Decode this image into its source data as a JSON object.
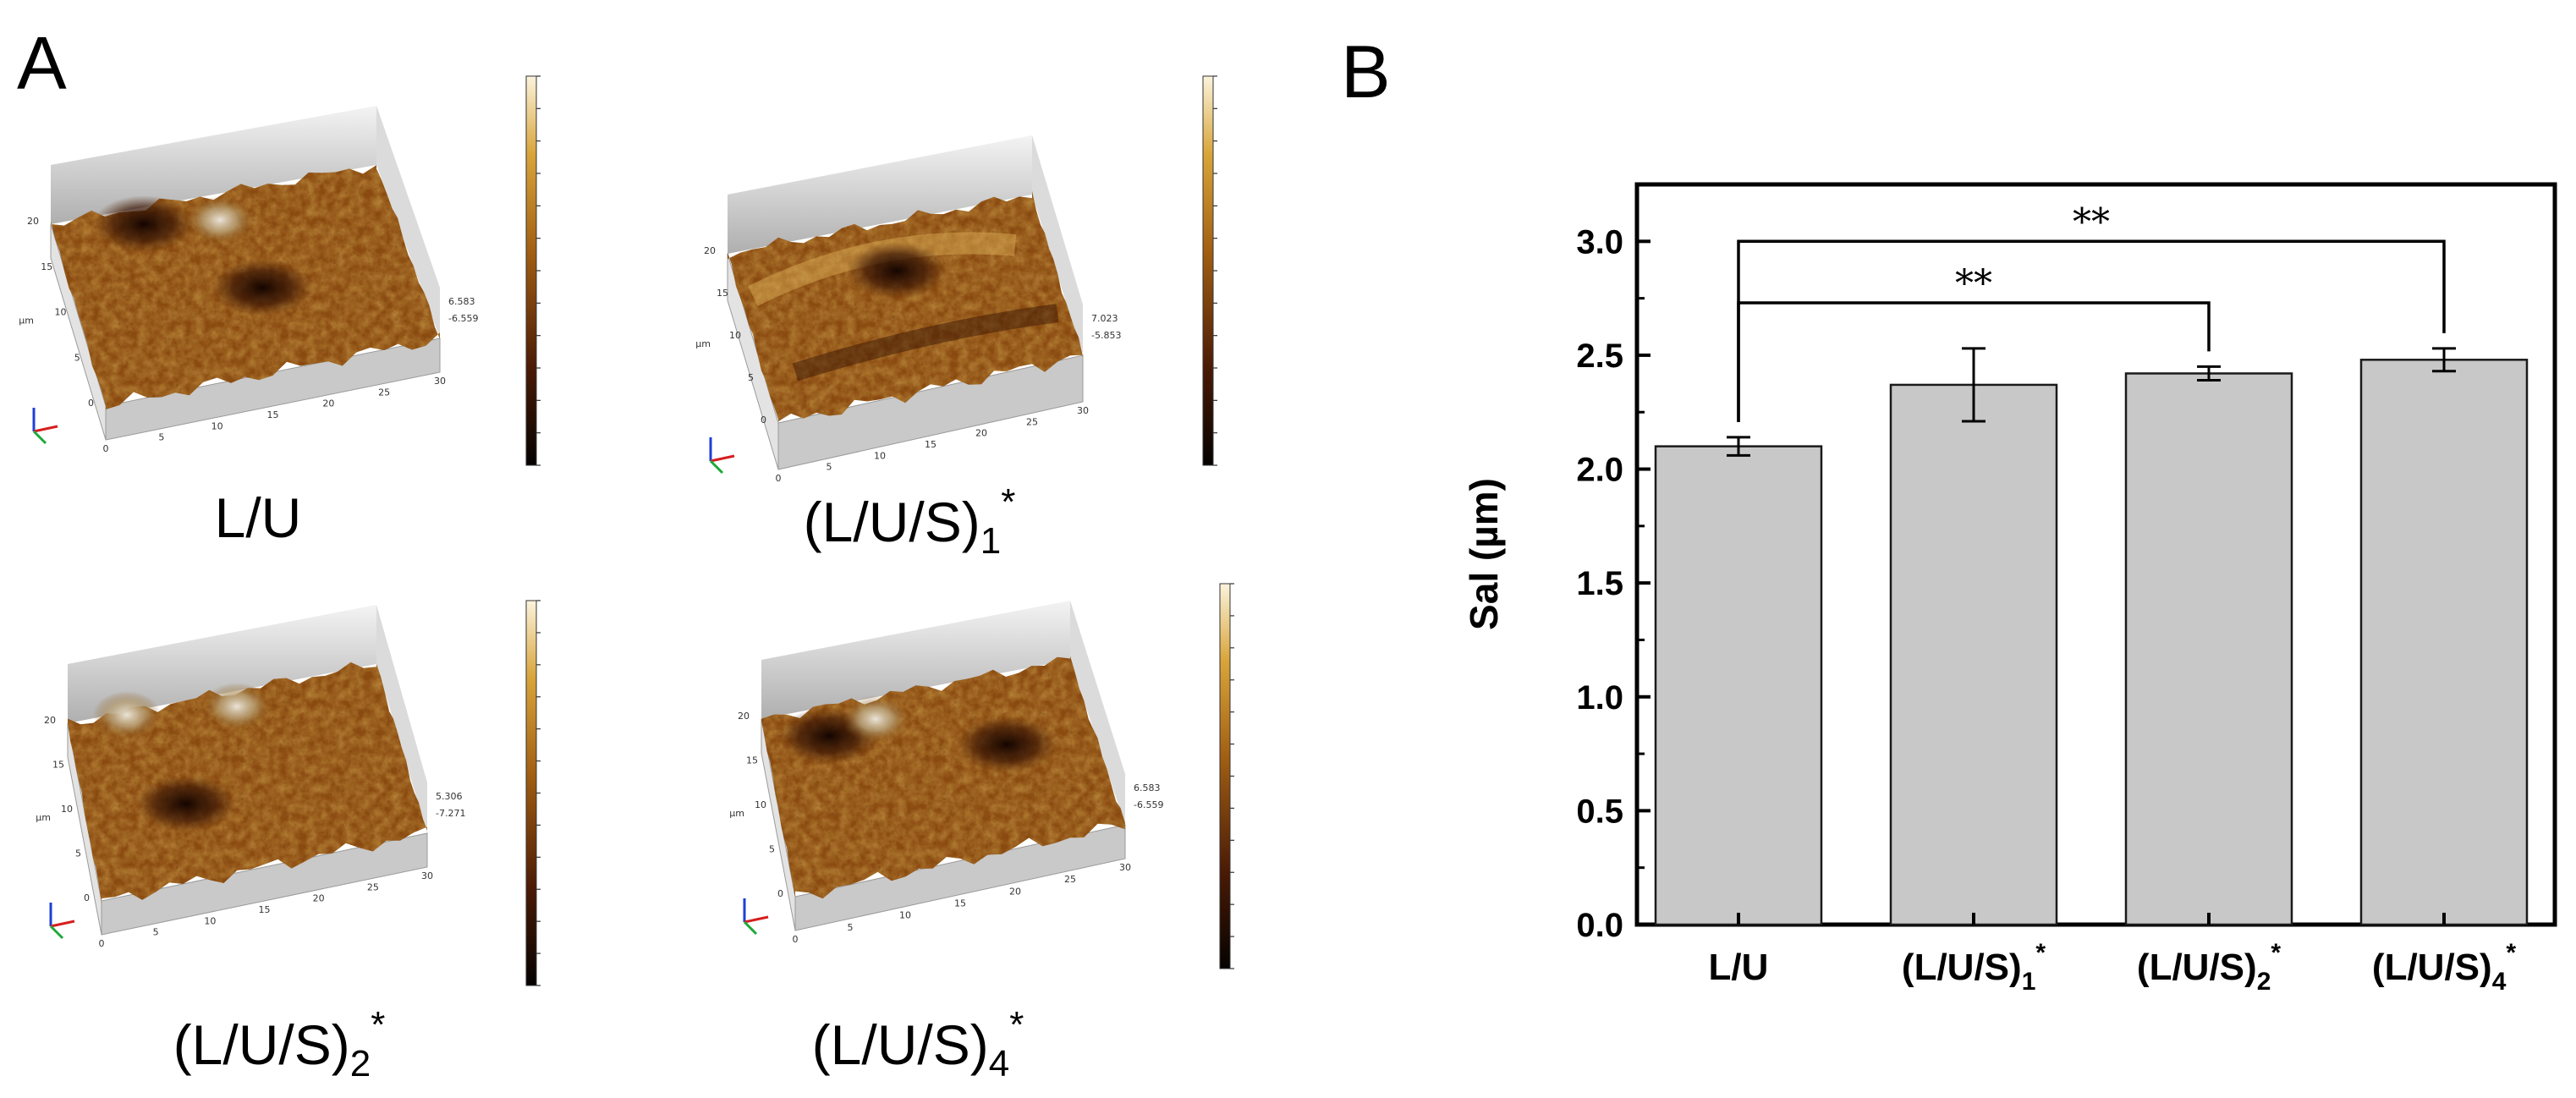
{
  "panels": {
    "a_letter": "A",
    "b_letter": "B"
  },
  "afm_images": [
    {
      "label_main": "L/U",
      "label_sub": "",
      "label_sup": "",
      "peak_value": "6.583",
      "valley_value": "-6.559",
      "axis_ticks": [
        "0",
        "5",
        "10",
        "15",
        "20",
        "25",
        "30"
      ],
      "axis_unit": "µm"
    },
    {
      "label_main": "(L/U/S)",
      "label_sub": "1",
      "label_sup": "*",
      "peak_value": "7.023",
      "valley_value": "-5.853",
      "axis_ticks": [
        "0",
        "5",
        "10",
        "15",
        "20",
        "25",
        "30"
      ],
      "axis_unit": "µm"
    },
    {
      "label_main": "(L/U/S)",
      "label_sub": "2",
      "label_sup": "*",
      "peak_value": "5.306",
      "valley_value": "-7.271",
      "axis_ticks": [
        "0",
        "5",
        "10",
        "15",
        "20",
        "25",
        "30"
      ],
      "axis_unit": "µm"
    },
    {
      "label_main": "(L/U/S)",
      "label_sub": "4",
      "label_sup": "*",
      "peak_value": "6.583",
      "valley_value": "-6.559",
      "axis_ticks": [
        "0",
        "5",
        "10",
        "15",
        "20",
        "25",
        "30"
      ],
      "axis_unit": "µm"
    }
  ],
  "colors": {
    "bar_fill": "#c8c8c8",
    "bar_stroke": "#1a1a1a",
    "afm_dark": "#2a0d02",
    "afm_mid": "#8a4a10",
    "afm_light": "#d9a53a",
    "afm_highlight": "#f6e9c4",
    "base_gray": "#bdbdbd"
  },
  "chart_data": {
    "type": "bar",
    "title": "",
    "xlabel": "",
    "ylabel": "Sal (µm)",
    "ylim": [
      0,
      3.25
    ],
    "yticks": [
      "0.0",
      "0.5",
      "1.0",
      "1.5",
      "2.0",
      "2.5",
      "3.0"
    ],
    "categories": [
      {
        "main": "L/U",
        "sub": "",
        "sup": ""
      },
      {
        "main": "(L/U/S)",
        "sub": "1",
        "sup": "*"
      },
      {
        "main": "(L/U/S)",
        "sub": "2",
        "sup": "*"
      },
      {
        "main": "(L/U/S)",
        "sub": "4",
        "sup": "*"
      }
    ],
    "values": [
      2.1,
      2.37,
      2.42,
      2.48
    ],
    "errors": [
      0.04,
      0.16,
      0.03,
      0.05
    ],
    "significance": [
      {
        "from": 0,
        "to": 2,
        "label": "**"
      },
      {
        "from": 0,
        "to": 3,
        "label": "**"
      }
    ],
    "grid": false
  }
}
